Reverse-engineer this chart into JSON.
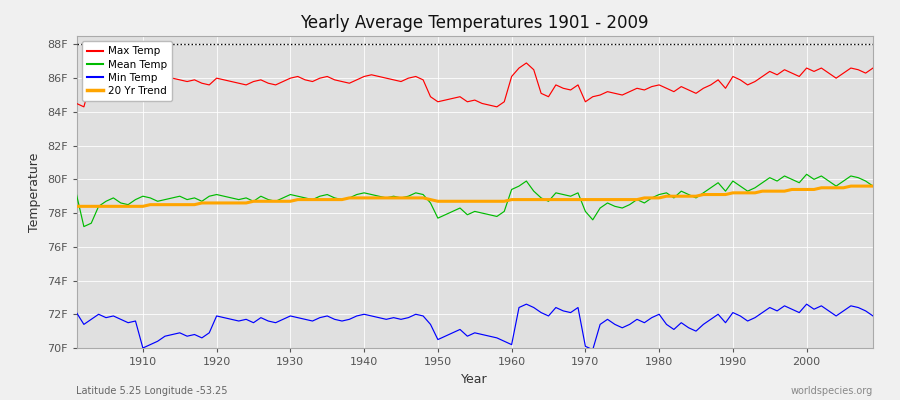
{
  "title": "Yearly Average Temperatures 1901 - 2009",
  "xlabel": "Year",
  "ylabel": "Temperature",
  "bottom_left": "Latitude 5.25 Longitude -53.25",
  "bottom_right": "worldspecies.org",
  "ylim": [
    70,
    88.5
  ],
  "yticks": [
    70,
    72,
    74,
    76,
    78,
    80,
    82,
    84,
    86,
    88
  ],
  "ytick_labels": [
    "70F",
    "72F",
    "74F",
    "76F",
    "78F",
    "80F",
    "82F",
    "84F",
    "86F",
    "88F"
  ],
  "xmin": 1901,
  "xmax": 2009,
  "hline_y": 88.0,
  "fig_bg_color": "#f0f0f0",
  "plot_bg_color": "#e0e0e0",
  "grid_color": "#ffffff",
  "max_temp_color": "#ff0000",
  "mean_temp_color": "#00bb00",
  "min_temp_color": "#0000ff",
  "trend_color": "#ffa500",
  "legend_labels": [
    "Max Temp",
    "Mean Temp",
    "Min Temp",
    "20 Yr Trend"
  ],
  "legend_colors": [
    "#ff0000",
    "#00bb00",
    "#0000ff",
    "#ffa500"
  ],
  "years": [
    1901,
    1902,
    1903,
    1904,
    1905,
    1906,
    1907,
    1908,
    1909,
    1910,
    1911,
    1912,
    1913,
    1914,
    1915,
    1916,
    1917,
    1918,
    1919,
    1920,
    1921,
    1922,
    1923,
    1924,
    1925,
    1926,
    1927,
    1928,
    1929,
    1930,
    1931,
    1932,
    1933,
    1934,
    1935,
    1936,
    1937,
    1938,
    1939,
    1940,
    1941,
    1942,
    1943,
    1944,
    1945,
    1946,
    1947,
    1948,
    1949,
    1950,
    1951,
    1952,
    1953,
    1954,
    1955,
    1956,
    1957,
    1958,
    1959,
    1960,
    1961,
    1962,
    1963,
    1964,
    1965,
    1966,
    1967,
    1968,
    1969,
    1970,
    1971,
    1972,
    1973,
    1974,
    1975,
    1976,
    1977,
    1978,
    1979,
    1980,
    1981,
    1982,
    1983,
    1984,
    1985,
    1986,
    1987,
    1988,
    1989,
    1990,
    1991,
    1992,
    1993,
    1994,
    1995,
    1996,
    1997,
    1998,
    1999,
    2000,
    2001,
    2002,
    2003,
    2004,
    2005,
    2006,
    2007,
    2008,
    2009
  ],
  "max_temp": [
    84.5,
    84.3,
    85.9,
    86.1,
    86.2,
    86.3,
    86.0,
    85.9,
    85.8,
    86.1,
    86.3,
    86.2,
    86.1,
    86.0,
    85.9,
    85.8,
    85.9,
    85.7,
    85.6,
    86.0,
    85.9,
    85.8,
    85.7,
    85.6,
    85.8,
    85.9,
    85.7,
    85.6,
    85.8,
    86.0,
    86.1,
    85.9,
    85.8,
    86.0,
    86.1,
    85.9,
    85.8,
    85.7,
    85.9,
    86.1,
    86.2,
    86.1,
    86.0,
    85.9,
    85.8,
    86.0,
    86.1,
    85.9,
    84.9,
    84.6,
    84.7,
    84.8,
    84.9,
    84.6,
    84.7,
    84.5,
    84.4,
    84.3,
    84.6,
    86.1,
    86.6,
    86.9,
    86.5,
    85.1,
    84.9,
    85.6,
    85.4,
    85.3,
    85.6,
    84.6,
    84.9,
    85.0,
    85.2,
    85.1,
    85.0,
    85.2,
    85.4,
    85.3,
    85.5,
    85.6,
    85.4,
    85.2,
    85.5,
    85.3,
    85.1,
    85.4,
    85.6,
    85.9,
    85.4,
    86.1,
    85.9,
    85.6,
    85.8,
    86.1,
    86.4,
    86.2,
    86.5,
    86.3,
    86.1,
    86.6,
    86.4,
    86.6,
    86.3,
    86.0,
    86.3,
    86.6,
    86.5,
    86.3,
    86.6
  ],
  "mean_temp": [
    79.1,
    77.2,
    77.4,
    78.4,
    78.7,
    78.9,
    78.6,
    78.5,
    78.8,
    79.0,
    78.9,
    78.7,
    78.8,
    78.9,
    79.0,
    78.8,
    78.9,
    78.7,
    79.0,
    79.1,
    79.0,
    78.9,
    78.8,
    78.9,
    78.7,
    79.0,
    78.8,
    78.7,
    78.9,
    79.1,
    79.0,
    78.9,
    78.8,
    79.0,
    79.1,
    78.9,
    78.8,
    78.9,
    79.1,
    79.2,
    79.1,
    79.0,
    78.9,
    79.0,
    78.9,
    79.0,
    79.2,
    79.1,
    78.6,
    77.7,
    77.9,
    78.1,
    78.3,
    77.9,
    78.1,
    78.0,
    77.9,
    77.8,
    78.1,
    79.4,
    79.6,
    79.9,
    79.3,
    78.9,
    78.7,
    79.2,
    79.1,
    79.0,
    79.2,
    78.1,
    77.6,
    78.3,
    78.6,
    78.4,
    78.3,
    78.5,
    78.8,
    78.6,
    78.9,
    79.1,
    79.2,
    78.9,
    79.3,
    79.1,
    78.9,
    79.2,
    79.5,
    79.8,
    79.3,
    79.9,
    79.6,
    79.3,
    79.5,
    79.8,
    80.1,
    79.9,
    80.2,
    80.0,
    79.8,
    80.3,
    80.0,
    80.2,
    79.9,
    79.6,
    79.9,
    80.2,
    80.1,
    79.9,
    79.6
  ],
  "min_temp": [
    72.1,
    71.4,
    71.7,
    72.0,
    71.8,
    71.9,
    71.7,
    71.5,
    71.6,
    70.0,
    70.2,
    70.4,
    70.7,
    70.8,
    70.9,
    70.7,
    70.8,
    70.6,
    70.9,
    71.9,
    71.8,
    71.7,
    71.6,
    71.7,
    71.5,
    71.8,
    71.6,
    71.5,
    71.7,
    71.9,
    71.8,
    71.7,
    71.6,
    71.8,
    71.9,
    71.7,
    71.6,
    71.7,
    71.9,
    72.0,
    71.9,
    71.8,
    71.7,
    71.8,
    71.7,
    71.8,
    72.0,
    71.9,
    71.4,
    70.5,
    70.7,
    70.9,
    71.1,
    70.7,
    70.9,
    70.8,
    70.7,
    70.6,
    70.4,
    70.2,
    72.4,
    72.6,
    72.4,
    72.1,
    71.9,
    72.4,
    72.2,
    72.1,
    72.4,
    70.1,
    69.9,
    71.4,
    71.7,
    71.4,
    71.2,
    71.4,
    71.7,
    71.5,
    71.8,
    72.0,
    71.4,
    71.1,
    71.5,
    71.2,
    71.0,
    71.4,
    71.7,
    72.0,
    71.5,
    72.1,
    71.9,
    71.6,
    71.8,
    72.1,
    72.4,
    72.2,
    72.5,
    72.3,
    72.1,
    72.6,
    72.3,
    72.5,
    72.2,
    71.9,
    72.2,
    72.5,
    72.4,
    72.2,
    71.9
  ],
  "trend": [
    78.4,
    78.4,
    78.4,
    78.4,
    78.4,
    78.4,
    78.4,
    78.4,
    78.4,
    78.4,
    78.5,
    78.5,
    78.5,
    78.5,
    78.5,
    78.5,
    78.5,
    78.6,
    78.6,
    78.6,
    78.6,
    78.6,
    78.6,
    78.6,
    78.7,
    78.7,
    78.7,
    78.7,
    78.7,
    78.7,
    78.8,
    78.8,
    78.8,
    78.8,
    78.8,
    78.8,
    78.8,
    78.9,
    78.9,
    78.9,
    78.9,
    78.9,
    78.9,
    78.9,
    78.9,
    78.9,
    78.9,
    78.9,
    78.8,
    78.7,
    78.7,
    78.7,
    78.7,
    78.7,
    78.7,
    78.7,
    78.7,
    78.7,
    78.7,
    78.8,
    78.8,
    78.8,
    78.8,
    78.8,
    78.8,
    78.8,
    78.8,
    78.8,
    78.8,
    78.8,
    78.8,
    78.8,
    78.8,
    78.8,
    78.8,
    78.8,
    78.8,
    78.9,
    78.9,
    78.9,
    79.0,
    79.0,
    79.0,
    79.0,
    79.0,
    79.1,
    79.1,
    79.1,
    79.1,
    79.2,
    79.2,
    79.2,
    79.2,
    79.3,
    79.3,
    79.3,
    79.3,
    79.4,
    79.4,
    79.4,
    79.4,
    79.5,
    79.5,
    79.5,
    79.5,
    79.6,
    79.6,
    79.6,
    79.6
  ]
}
